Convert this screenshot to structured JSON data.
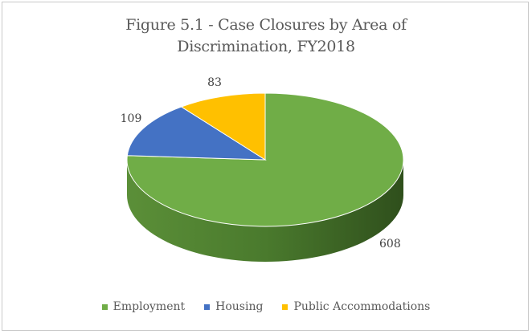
{
  "chart_data": {
    "type": "pie",
    "title_line1": "Figure 5.1 - Case Closures by Area of",
    "title_line2": "Discrimination, FY2018",
    "categories": [
      "Employment",
      "Housing",
      "Public Accommodations"
    ],
    "values": [
      608,
      109,
      83
    ],
    "colors": [
      "#70ad47",
      "#4472c4",
      "#ffc000"
    ],
    "side_colors": [
      "#466e2b",
      "#2f4f8c",
      "#b38600"
    ],
    "legend_position": "bottom",
    "style": "3d"
  }
}
